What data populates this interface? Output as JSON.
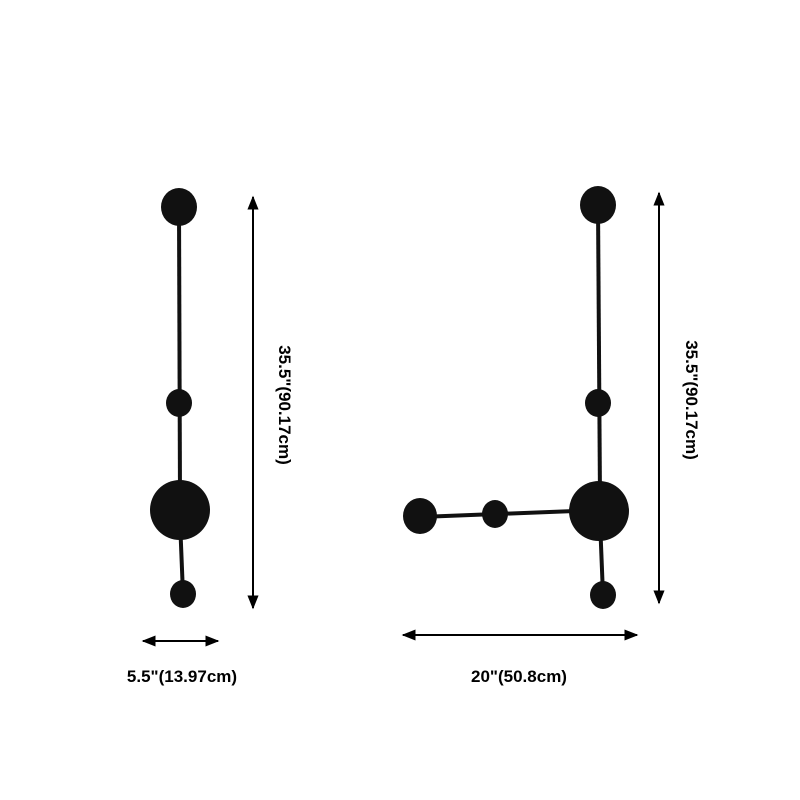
{
  "colors": {
    "fixture": "#111111",
    "dimension_line": "#000000",
    "background": "#ffffff"
  },
  "left_view": {
    "height_label": "35.5\"(90.17cm)",
    "width_label": "5.5\"(13.97cm)"
  },
  "right_view": {
    "height_label": "35.5\"(90.17cm)",
    "width_label": "20\"(50.8cm)"
  }
}
